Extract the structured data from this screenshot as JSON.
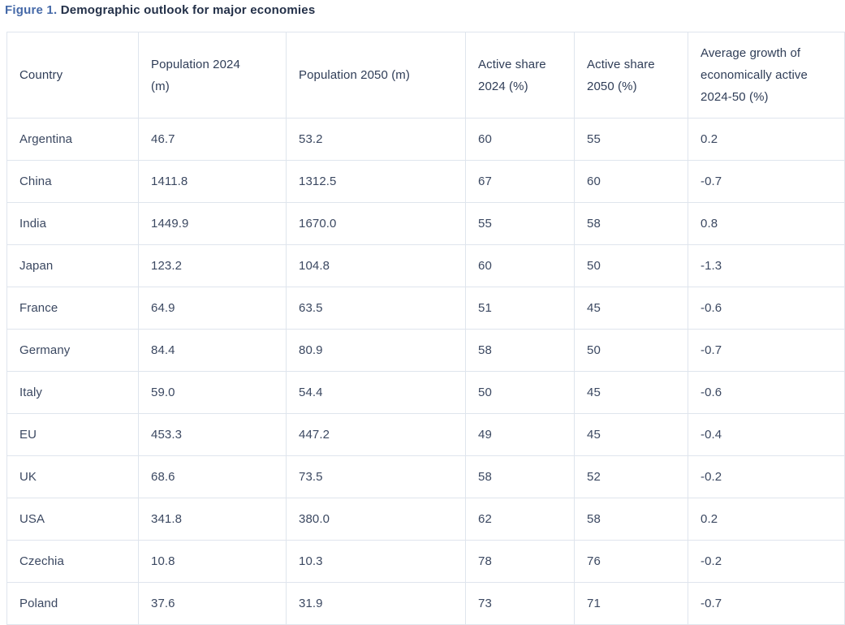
{
  "figure": {
    "label": "Figure 1.",
    "title": "Demographic outlook for major economies"
  },
  "chart_data": {
    "type": "table",
    "title": "Figure 1. Demographic outlook for major economies",
    "columns": [
      "Country",
      "Population 2024 (m)",
      "Population 2050 (m)",
      "Active share 2024 (%)",
      "Active share 2050 (%)",
      "Average growth of economically active 2024-50 (%)"
    ],
    "rows": [
      [
        "Argentina",
        "46.7",
        "53.2",
        "60",
        "55",
        "0.2"
      ],
      [
        "China",
        "1411.8",
        "1312.5",
        "67",
        "60",
        "-0.7"
      ],
      [
        "India",
        "1449.9",
        "1670.0",
        "55",
        "58",
        "0.8"
      ],
      [
        "Japan",
        "123.2",
        "104.8",
        "60",
        "50",
        "-1.3"
      ],
      [
        "France",
        "64.9",
        "63.5",
        "51",
        "45",
        "-0.6"
      ],
      [
        "Germany",
        "84.4",
        "80.9",
        "58",
        "50",
        "-0.7"
      ],
      [
        "Italy",
        "59.0",
        "54.4",
        "50",
        "45",
        "-0.6"
      ],
      [
        "EU",
        "453.3",
        "447.2",
        "49",
        "45",
        "-0.4"
      ],
      [
        "UK",
        "68.6",
        "73.5",
        "58",
        "52",
        "-0.2"
      ],
      [
        "USA",
        "341.8",
        "380.0",
        "62",
        "58",
        "0.2"
      ],
      [
        "Czechia",
        "10.8",
        "10.3",
        "78",
        "76",
        "-0.2"
      ],
      [
        "Poland",
        "37.6",
        "31.9",
        "73",
        "71",
        "-0.7"
      ]
    ],
    "layout": {
      "grid": "full-borders",
      "header_position": "top",
      "clipped": "last row cut off at bottom edge, last column reaches right edge"
    }
  },
  "colors": {
    "figure_label": "#4569a8",
    "title_text": "#233048",
    "header_text": "#2f3d57",
    "body_text": "#3b4861",
    "grid_border": "#dfe5ed",
    "background": "#ffffff"
  }
}
